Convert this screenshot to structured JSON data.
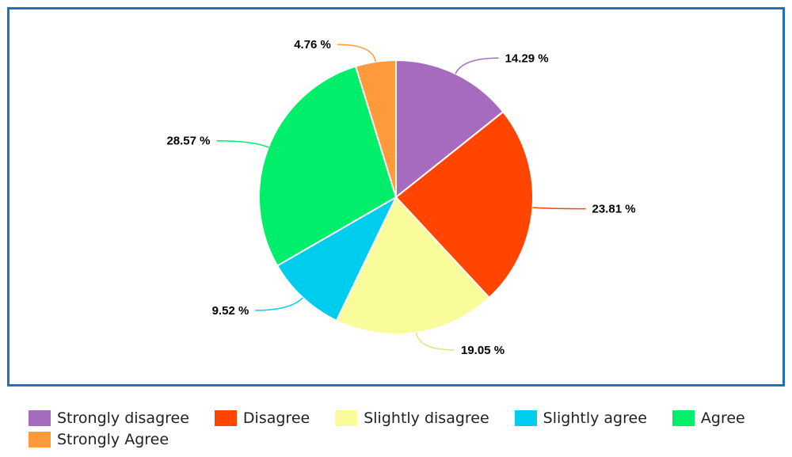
{
  "chart_data": {
    "type": "pie",
    "title": "",
    "categories": [
      "Strongly disagree",
      "Disagree",
      "Slightly disagree",
      "Slightly agree",
      "Agree",
      "Strongly Agree"
    ],
    "values": [
      14.29,
      23.81,
      19.05,
      9.52,
      28.57,
      4.76
    ],
    "data_labels": [
      "14.29 %",
      "23.81 %",
      "19.05 %",
      "9.52 %",
      "28.57 %",
      "4.76 %"
    ],
    "colors": [
      "#A66BBE",
      "#FF4500",
      "#FAFB9A",
      "#00CCEE",
      "#00EE6A",
      "#FF9A3C"
    ],
    "border_color": "#1E73BE",
    "legend_position": "bottom"
  }
}
